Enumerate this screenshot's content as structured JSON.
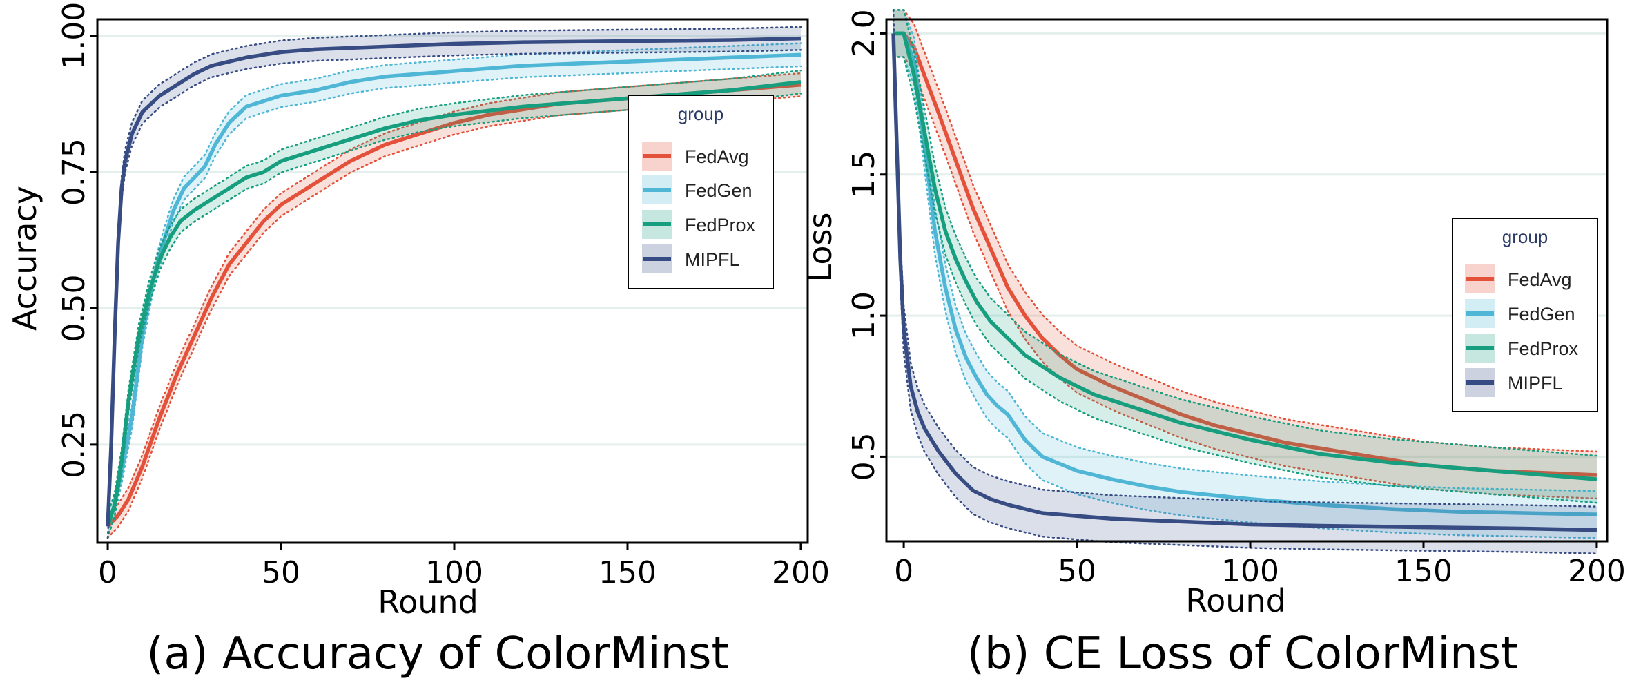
{
  "colors": {
    "FedAvg": "#e3513a",
    "FedGen": "#4fb6d6",
    "FedProx": "#169e7e",
    "MIPFL": "#384c84",
    "grid": "#e3efec"
  },
  "chart_data": [
    {
      "type": "line",
      "title": "(a) Accuracy of ColorMinst",
      "xlabel": "Round",
      "ylabel": "Accuracy",
      "xlim": [
        -3,
        202
      ],
      "ylim": [
        0.07,
        1.03
      ],
      "xticks": [
        0,
        50,
        100,
        150,
        200
      ],
      "xtick_labels": [
        "0",
        "50",
        "100",
        "150",
        "200"
      ],
      "yticks": [
        0.25,
        0.5,
        0.75,
        1.0
      ],
      "ytick_labels": [
        "0.25",
        "0.50",
        "0.75",
        "1.00"
      ],
      "legend": {
        "title": "group",
        "position": "right",
        "entries": [
          "FedAvg",
          "FedGen",
          "FedProx",
          "MIPFL"
        ]
      },
      "series": [
        {
          "name": "FedAvg",
          "x": [
            0,
            3,
            6,
            10,
            15,
            20,
            25,
            30,
            35,
            40,
            45,
            50,
            55,
            60,
            70,
            80,
            90,
            100,
            110,
            120,
            130,
            140,
            150,
            160,
            170,
            180,
            190,
            200
          ],
          "y": [
            0.1,
            0.12,
            0.15,
            0.21,
            0.3,
            0.38,
            0.45,
            0.52,
            0.58,
            0.62,
            0.66,
            0.69,
            0.71,
            0.73,
            0.77,
            0.8,
            0.82,
            0.84,
            0.855,
            0.865,
            0.875,
            0.88,
            0.885,
            0.89,
            0.895,
            0.9,
            0.905,
            0.91
          ]
        },
        {
          "name": "FedGen",
          "x": [
            0,
            2,
            4,
            7,
            10,
            13,
            16,
            19,
            22,
            25,
            28,
            31,
            35,
            40,
            45,
            50,
            60,
            70,
            80,
            90,
            100,
            120,
            140,
            160,
            180,
            200
          ],
          "y": [
            0.1,
            0.14,
            0.2,
            0.3,
            0.45,
            0.55,
            0.62,
            0.68,
            0.72,
            0.74,
            0.76,
            0.8,
            0.84,
            0.87,
            0.88,
            0.89,
            0.9,
            0.915,
            0.925,
            0.93,
            0.935,
            0.945,
            0.95,
            0.955,
            0.96,
            0.965
          ]
        },
        {
          "name": "FedProx",
          "x": [
            0,
            2,
            4,
            6,
            9,
            12,
            15,
            18,
            21,
            25,
            30,
            35,
            40,
            45,
            50,
            55,
            60,
            70,
            80,
            90,
            100,
            120,
            140,
            160,
            180,
            200
          ],
          "y": [
            0.1,
            0.14,
            0.22,
            0.33,
            0.45,
            0.53,
            0.59,
            0.63,
            0.66,
            0.68,
            0.7,
            0.72,
            0.74,
            0.75,
            0.77,
            0.78,
            0.79,
            0.81,
            0.83,
            0.845,
            0.855,
            0.87,
            0.88,
            0.89,
            0.9,
            0.915
          ]
        },
        {
          "name": "MIPFL",
          "x": [
            0,
            1,
            2,
            3,
            4,
            5,
            7,
            10,
            15,
            20,
            25,
            30,
            40,
            50,
            60,
            80,
            100,
            120,
            150,
            180,
            200
          ],
          "y": [
            0.1,
            0.25,
            0.45,
            0.62,
            0.72,
            0.77,
            0.82,
            0.86,
            0.89,
            0.91,
            0.93,
            0.945,
            0.96,
            0.97,
            0.975,
            0.98,
            0.985,
            0.988,
            0.99,
            0.992,
            0.995
          ]
        }
      ]
    },
    {
      "type": "line",
      "title": "(b) CE Loss of ColorMinst",
      "xlabel": "Round",
      "ylabel": "Loss",
      "xlim": [
        -5,
        203
      ],
      "ylim": [
        0.2,
        2.05
      ],
      "xticks": [
        0,
        50,
        100,
        150,
        200
      ],
      "xtick_labels": [
        "0",
        "50",
        "100",
        "150",
        "200"
      ],
      "yticks": [
        0.5,
        1.0,
        1.5,
        2.0
      ],
      "ytick_labels": [
        "0.5",
        "1.0",
        "1.5",
        "2.0"
      ],
      "legend": {
        "title": "group",
        "position": "right",
        "entries": [
          "FedAvg",
          "FedGen",
          "FedProx",
          "MIPFL"
        ]
      },
      "series": [
        {
          "name": "FedAvg",
          "x": [
            -3,
            0,
            3,
            6,
            10,
            15,
            20,
            25,
            30,
            35,
            40,
            45,
            50,
            55,
            60,
            70,
            80,
            90,
            100,
            110,
            120,
            130,
            140,
            150,
            160,
            170,
            180,
            190,
            200
          ],
          "y": [
            2.0,
            2.0,
            1.95,
            1.85,
            1.72,
            1.55,
            1.38,
            1.24,
            1.1,
            1.0,
            0.92,
            0.86,
            0.81,
            0.78,
            0.75,
            0.7,
            0.65,
            0.61,
            0.58,
            0.55,
            0.53,
            0.51,
            0.49,
            0.47,
            0.46,
            0.45,
            0.445,
            0.44,
            0.435
          ]
        },
        {
          "name": "FedGen",
          "x": [
            -3,
            0,
            3,
            6,
            9,
            12,
            15,
            18,
            21,
            24,
            27,
            30,
            35,
            40,
            50,
            60,
            70,
            80,
            100,
            120,
            140,
            160,
            180,
            200
          ],
          "y": [
            2.0,
            2.0,
            1.9,
            1.6,
            1.3,
            1.1,
            0.95,
            0.85,
            0.78,
            0.72,
            0.68,
            0.65,
            0.56,
            0.5,
            0.45,
            0.42,
            0.395,
            0.375,
            0.35,
            0.33,
            0.315,
            0.305,
            0.3,
            0.295
          ]
        },
        {
          "name": "FedProx",
          "x": [
            -3,
            0,
            3,
            6,
            9,
            12,
            15,
            18,
            21,
            25,
            30,
            35,
            40,
            45,
            50,
            55,
            60,
            70,
            80,
            90,
            100,
            120,
            140,
            160,
            180,
            200
          ],
          "y": [
            2.0,
            2.0,
            1.85,
            1.65,
            1.45,
            1.3,
            1.2,
            1.12,
            1.05,
            0.98,
            0.92,
            0.86,
            0.82,
            0.78,
            0.75,
            0.72,
            0.7,
            0.66,
            0.62,
            0.59,
            0.56,
            0.51,
            0.48,
            0.46,
            0.44,
            0.42
          ]
        },
        {
          "name": "MIPFL",
          "x": [
            -3,
            -2,
            -1,
            0,
            1,
            2,
            4,
            6,
            8,
            10,
            15,
            20,
            25,
            30,
            40,
            50,
            60,
            80,
            100,
            120,
            150,
            180,
            200
          ],
          "y": [
            2.0,
            1.6,
            1.2,
            0.95,
            0.85,
            0.75,
            0.66,
            0.6,
            0.56,
            0.52,
            0.44,
            0.38,
            0.35,
            0.33,
            0.3,
            0.29,
            0.28,
            0.27,
            0.26,
            0.255,
            0.25,
            0.245,
            0.24
          ]
        }
      ]
    }
  ]
}
